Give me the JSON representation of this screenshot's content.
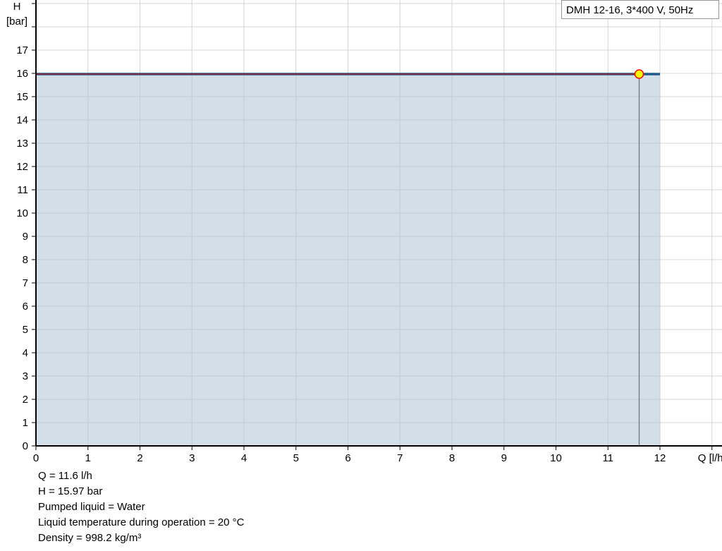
{
  "chart_data": {
    "type": "area",
    "legend": "DMH 12-16, 3*400 V, 50Hz",
    "ylabel_line1": "H",
    "ylabel_line2": "[bar]",
    "xlabel": "Q [l/h]",
    "xlim": [
      0,
      13
    ],
    "ylim": [
      0,
      19
    ],
    "x_ticks": [
      0,
      1,
      2,
      3,
      4,
      5,
      6,
      7,
      8,
      9,
      10,
      11,
      12
    ],
    "y_ticks": [
      0,
      1,
      2,
      3,
      4,
      5,
      6,
      7,
      8,
      9,
      10,
      11,
      12,
      13,
      14,
      15,
      16,
      17
    ],
    "grid": true,
    "series": [
      {
        "x": [
          0,
          12
        ],
        "y": [
          15.97,
          15.97
        ],
        "color": "#1f5a8c",
        "fill": "#d0dce7"
      }
    ],
    "duty_point": {
      "x": 11.6,
      "y": 15.97,
      "color": "#ffff00",
      "edge": "#ff0000"
    }
  },
  "info": {
    "q": "Q = 11.6 l/h",
    "h": "H = 15.97 bar",
    "liquid": "Pumped liquid = Water",
    "temp": "Liquid temperature during operation = 20 °C",
    "density": "Density = 998.2 kg/m³"
  }
}
